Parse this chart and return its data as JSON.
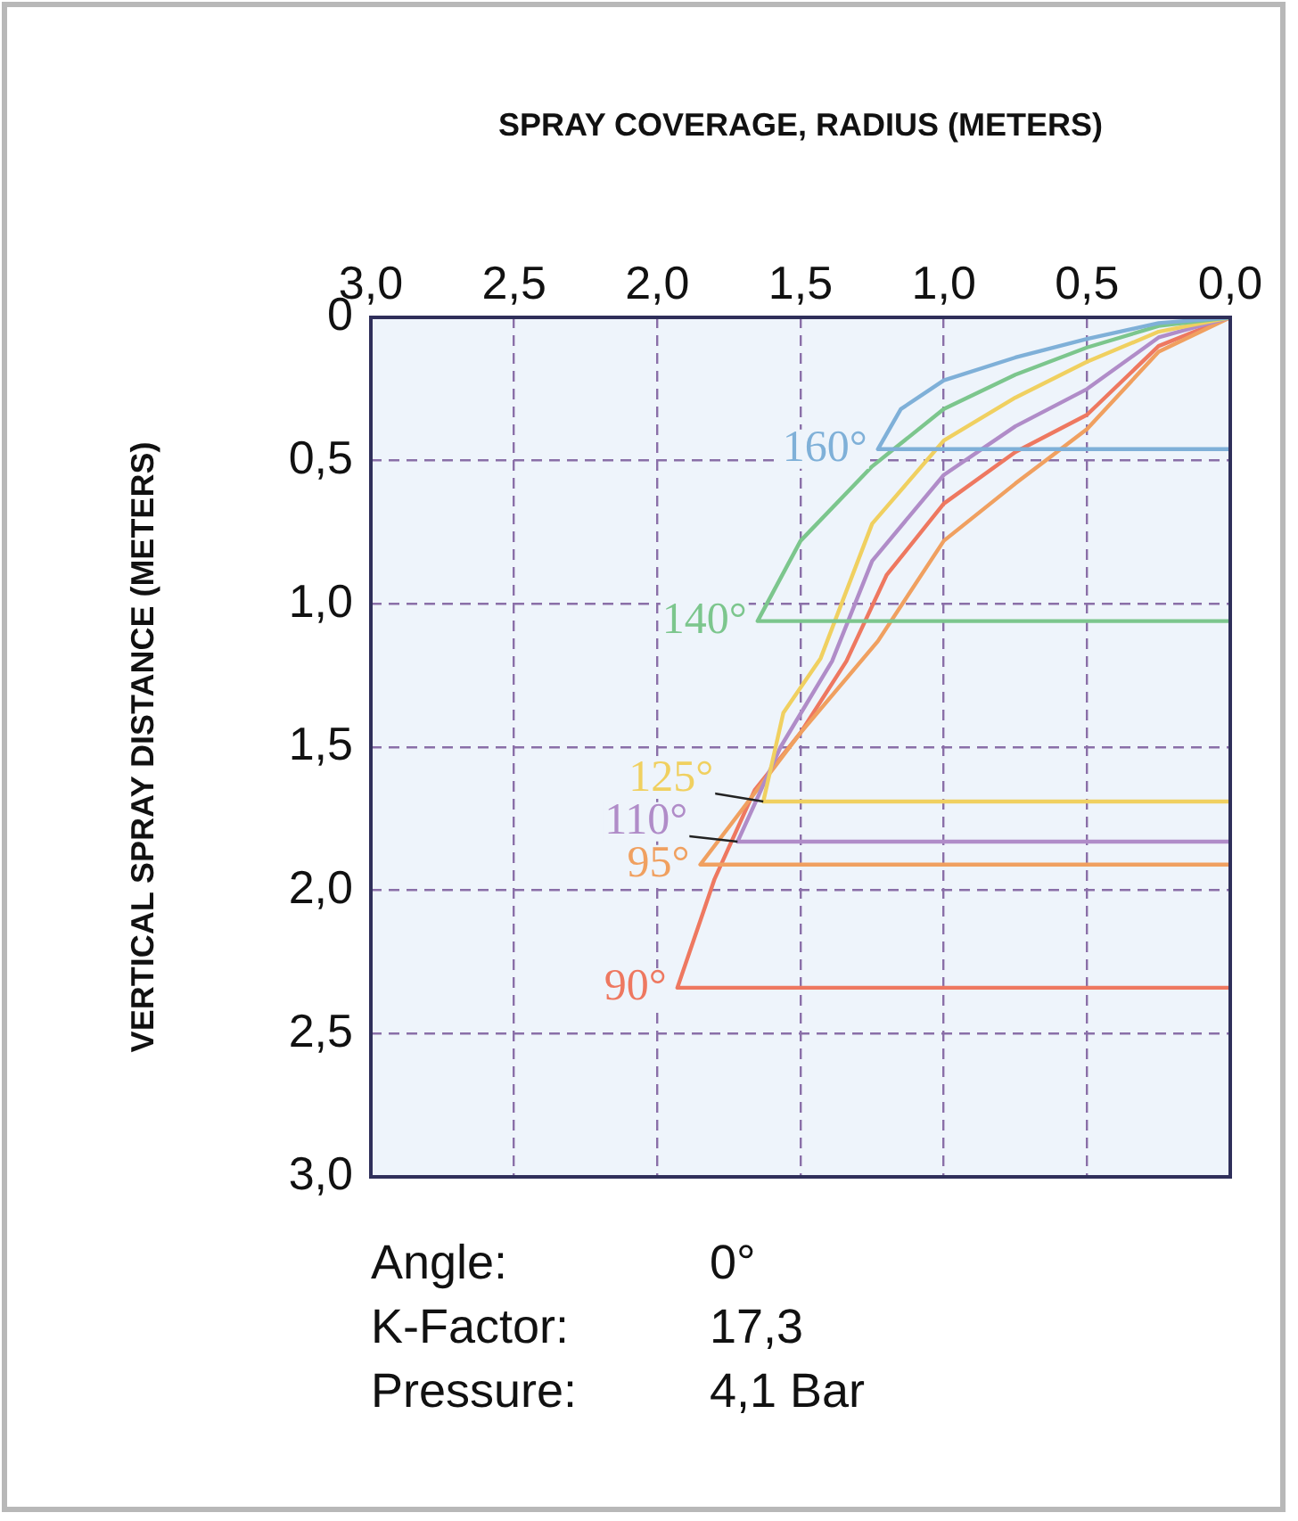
{
  "chart_data": {
    "type": "line",
    "xlabel": "SPRAY COVERAGE, RADIUS (METERS)",
    "ylabel": "VERTICAL SPRAY DISTANCE (METERS)",
    "xlim": [
      3.0,
      0.0
    ],
    "ylim": [
      3.0,
      0.0
    ],
    "xticks": [
      {
        "value": 3.0,
        "label": "3,0"
      },
      {
        "value": 2.5,
        "label": "2,5"
      },
      {
        "value": 2.0,
        "label": "2,0"
      },
      {
        "value": 1.5,
        "label": "1,5"
      },
      {
        "value": 1.0,
        "label": "1,0"
      },
      {
        "value": 0.5,
        "label": "0,5"
      },
      {
        "value": 0.0,
        "label": "0,0"
      }
    ],
    "yticks": [
      {
        "value": 0,
        "label": "0"
      },
      {
        "value": 0.5,
        "label": "0,5"
      },
      {
        "value": 1.0,
        "label": "1,0"
      },
      {
        "value": 1.5,
        "label": "1,5"
      },
      {
        "value": 2.0,
        "label": "2,0"
      },
      {
        "value": 2.5,
        "label": "2,5"
      },
      {
        "value": 3.0,
        "label": "3,0"
      }
    ],
    "grid": true,
    "legend": false,
    "marker": "none",
    "line_style": "solid",
    "series": [
      {
        "name": "160°",
        "color": "#7fb0d8",
        "x": [
          0,
          0.25,
          0.5,
          0.75,
          1.0,
          1.15,
          1.23,
          0
        ],
        "values": [
          0,
          0.02,
          0.075,
          0.14,
          0.22,
          0.32,
          0.46,
          0.46
        ]
      },
      {
        "name": "140°",
        "color": "#7cc68d",
        "x": [
          0,
          0.25,
          0.5,
          0.75,
          1.0,
          1.25,
          1.5,
          1.65,
          0
        ],
        "values": [
          0,
          0.03,
          0.105,
          0.2,
          0.32,
          0.52,
          0.78,
          1.06,
          1.06
        ]
      },
      {
        "name": "125°",
        "color": "#f0d060",
        "x": [
          0,
          0.25,
          0.5,
          0.75,
          1.0,
          1.25,
          1.43,
          1.56,
          1.63,
          0
        ],
        "values": [
          0,
          0.05,
          0.155,
          0.28,
          0.43,
          0.72,
          1.19,
          1.38,
          1.69,
          1.69
        ]
      },
      {
        "name": "110°",
        "color": "#b08cc8",
        "x": [
          0,
          0.25,
          0.5,
          0.75,
          1.0,
          1.25,
          1.39,
          1.57,
          1.72,
          0
        ],
        "values": [
          0,
          0.07,
          0.25,
          0.38,
          0.55,
          0.85,
          1.2,
          1.5,
          1.83,
          1.83
        ]
      },
      {
        "name": "95°",
        "color": "#f0a060",
        "x": [
          0,
          0.25,
          0.5,
          0.75,
          1.0,
          1.23,
          1.5,
          1.85,
          0
        ],
        "values": [
          0,
          0.12,
          0.39,
          0.58,
          0.78,
          1.13,
          1.45,
          1.91,
          1.91
        ]
      },
      {
        "name": "90°",
        "color": "#ee7860",
        "x": [
          0,
          0.25,
          0.5,
          0.75,
          1.0,
          1.2,
          1.34,
          1.5,
          1.66,
          1.8,
          1.93,
          0
        ],
        "values": [
          0,
          0.1,
          0.34,
          0.47,
          0.65,
          0.9,
          1.2,
          1.45,
          1.65,
          1.96,
          2.34,
          2.34
        ]
      }
    ],
    "annotations": [
      "Angle: 0°",
      "K-Factor: 17,3",
      "Pressure: 4,1 Bar"
    ]
  }
}
